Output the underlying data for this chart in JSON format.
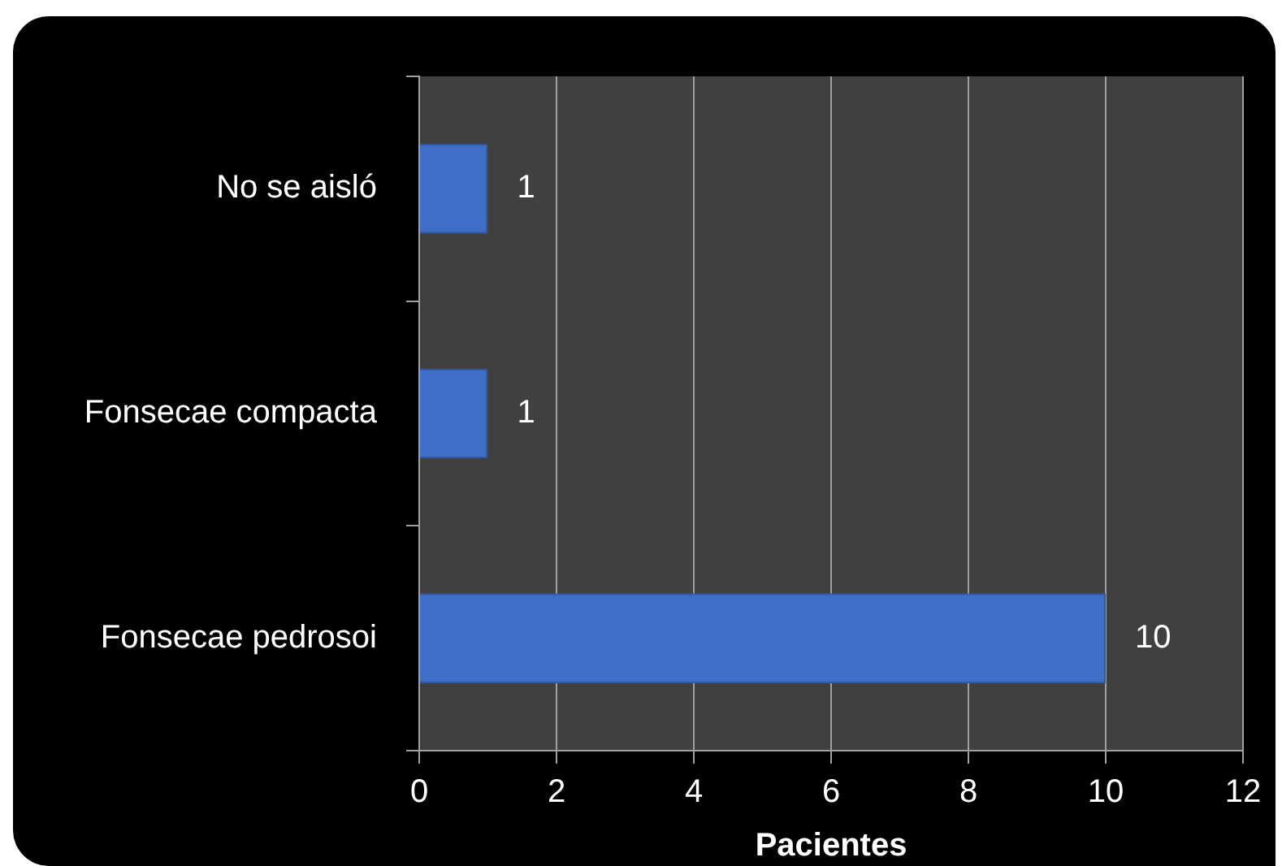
{
  "chart_data": {
    "type": "bar",
    "orientation": "horizontal",
    "categories": [
      "No se aisló",
      "Fonsecae compacta",
      "Fonsecae pedrosoi"
    ],
    "values": [
      1,
      1,
      10
    ],
    "color": "#3f6ec6",
    "xlabel": "Pacientes",
    "xlim": [
      0,
      12
    ],
    "xticks": [
      0,
      2,
      4,
      6,
      8,
      10,
      12
    ],
    "grid": "x",
    "legend": false,
    "data_labels": true
  }
}
